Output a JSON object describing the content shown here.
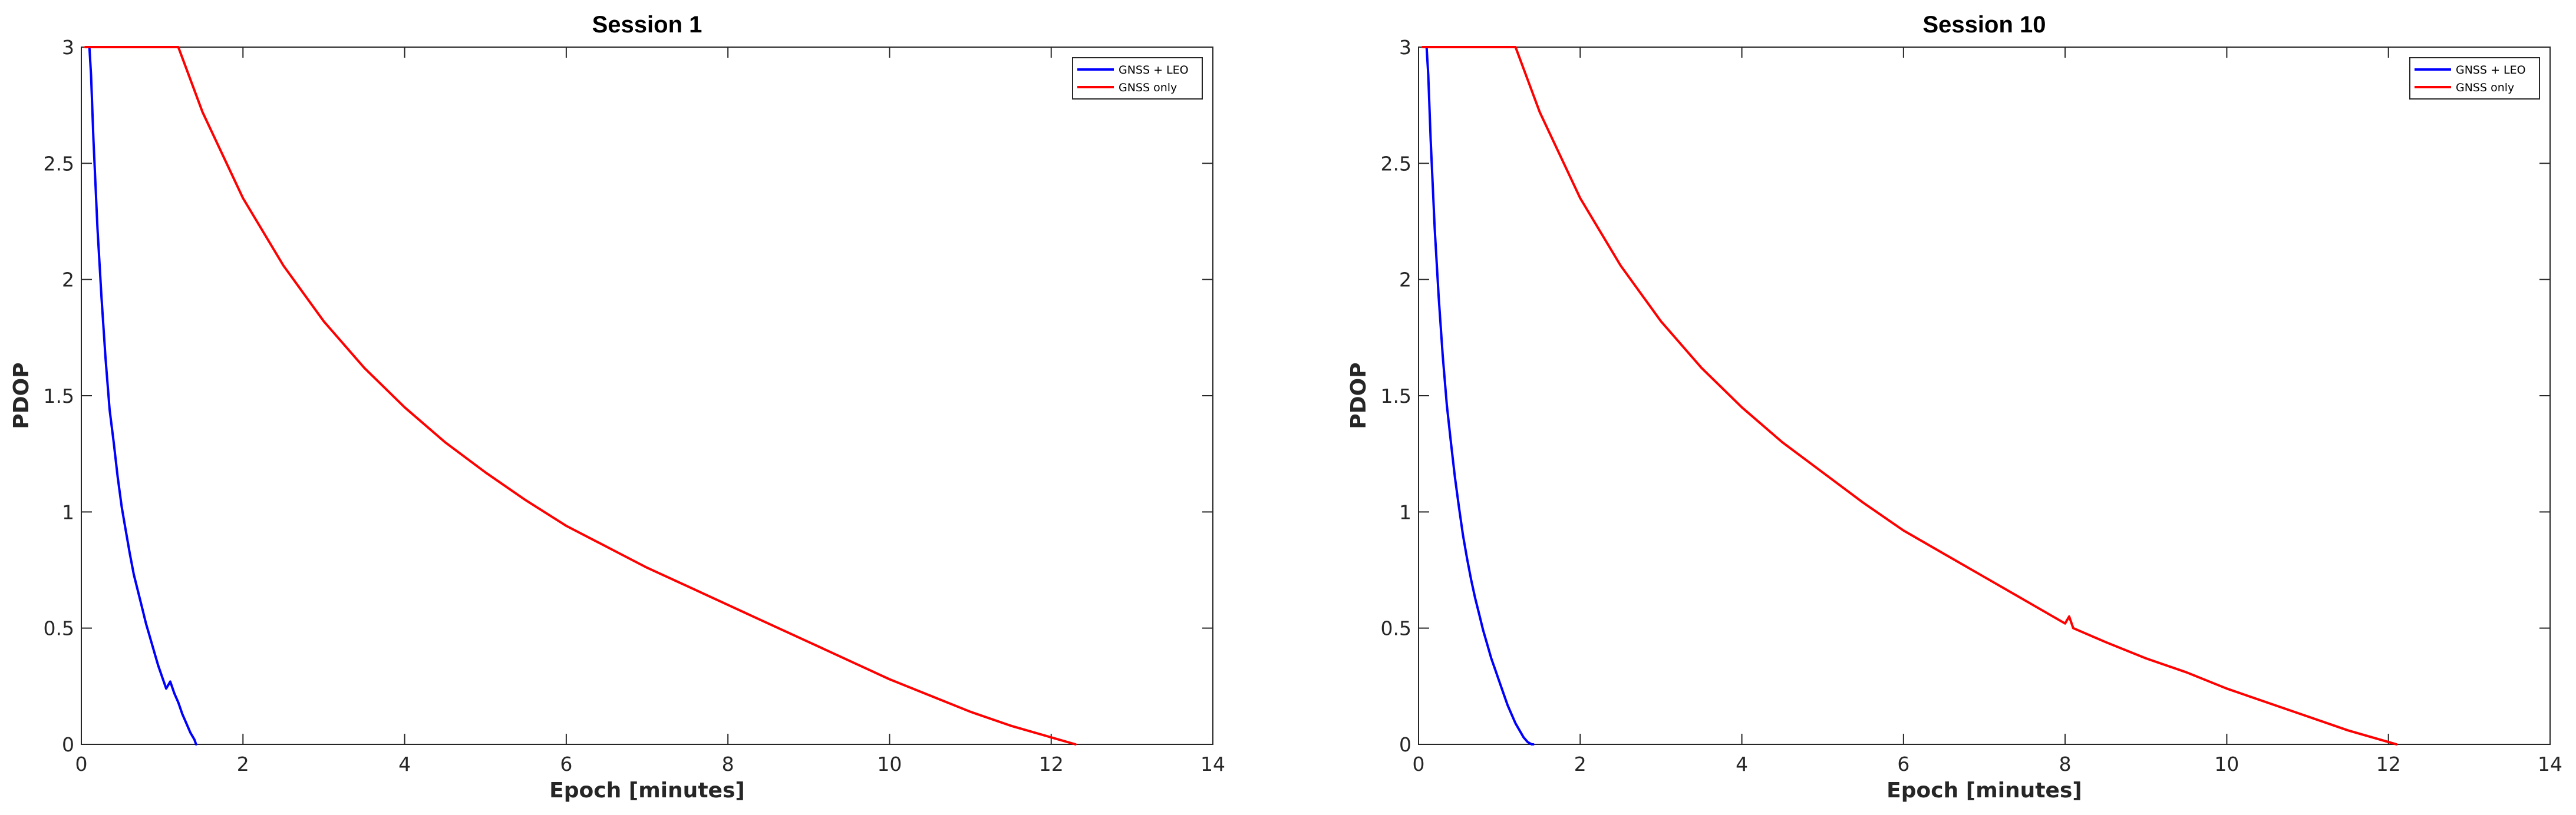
{
  "chart_data": [
    {
      "type": "line",
      "title": "Session 1",
      "xlabel": "Epoch [minutes]",
      "ylabel": "PDOP",
      "xlim": [
        0,
        14
      ],
      "ylim": [
        0,
        3
      ],
      "xticks": [
        0,
        2,
        4,
        6,
        8,
        10,
        12,
        14
      ],
      "xtick_labels": [
        "0",
        "2",
        "4",
        "6",
        "8",
        "10",
        "12",
        "14"
      ],
      "yticks": [
        0,
        0.5,
        1,
        1.5,
        2,
        2.5,
        3
      ],
      "ytick_labels": [
        "0",
        "0.5",
        "1",
        "1.5",
        "2",
        "2.5",
        "3"
      ],
      "grid": false,
      "legend_position": "top-right",
      "series": [
        {
          "name": "GNSS + LEO",
          "color": "#0000ff",
          "x": [
            0.1,
            0.12,
            0.15,
            0.2,
            0.25,
            0.3,
            0.35,
            0.4,
            0.45,
            0.5,
            0.55,
            0.6,
            0.65,
            0.7,
            0.75,
            0.8,
            0.85,
            0.9,
            0.95,
            1.0,
            1.05,
            1.1,
            1.15,
            1.2,
            1.25,
            1.3,
            1.35,
            1.4,
            1.42
          ],
          "y": [
            3.0,
            2.88,
            2.6,
            2.22,
            1.92,
            1.66,
            1.44,
            1.3,
            1.15,
            1.02,
            0.92,
            0.82,
            0.73,
            0.66,
            0.59,
            0.52,
            0.46,
            0.4,
            0.34,
            0.29,
            0.24,
            0.27,
            0.22,
            0.18,
            0.13,
            0.09,
            0.05,
            0.02,
            0.0
          ]
        },
        {
          "name": "GNSS only",
          "color": "#ff0000",
          "x": [
            0.05,
            0.5,
            1.0,
            1.2,
            1.5,
            2.0,
            2.5,
            3.0,
            3.5,
            4.0,
            4.5,
            5.0,
            5.5,
            6.0,
            6.5,
            7.0,
            7.5,
            8.0,
            8.5,
            9.0,
            9.5,
            10.0,
            10.5,
            11.0,
            11.5,
            12.0,
            12.3
          ],
          "y": [
            3.0,
            3.0,
            3.0,
            3.0,
            2.72,
            2.35,
            2.06,
            1.82,
            1.62,
            1.45,
            1.3,
            1.17,
            1.05,
            0.94,
            0.85,
            0.76,
            0.68,
            0.6,
            0.52,
            0.44,
            0.36,
            0.28,
            0.21,
            0.14,
            0.08,
            0.03,
            0.0
          ]
        }
      ]
    },
    {
      "type": "line",
      "title": "Session 10",
      "xlabel": "Epoch [minutes]",
      "ylabel": "PDOP",
      "xlim": [
        0,
        14
      ],
      "ylim": [
        0,
        3
      ],
      "xticks": [
        0,
        2,
        4,
        6,
        8,
        10,
        12,
        14
      ],
      "xtick_labels": [
        "0",
        "2",
        "4",
        "6",
        "8",
        "10",
        "12",
        "14"
      ],
      "yticks": [
        0,
        0.5,
        1,
        1.5,
        2,
        2.5,
        3
      ],
      "ytick_labels": [
        "0",
        "0.5",
        "1",
        "1.5",
        "2",
        "2.5",
        "3"
      ],
      "grid": false,
      "legend_position": "top-right",
      "series": [
        {
          "name": "GNSS + LEO",
          "color": "#0000ff",
          "x": [
            0.1,
            0.12,
            0.15,
            0.2,
            0.25,
            0.3,
            0.35,
            0.4,
            0.45,
            0.5,
            0.55,
            0.6,
            0.65,
            0.7,
            0.75,
            0.8,
            0.85,
            0.9,
            0.95,
            1.0,
            1.05,
            1.1,
            1.15,
            1.2,
            1.25,
            1.3,
            1.35,
            1.4,
            1.42
          ],
          "y": [
            3.0,
            2.88,
            2.6,
            2.22,
            1.92,
            1.67,
            1.46,
            1.3,
            1.15,
            1.02,
            0.9,
            0.8,
            0.71,
            0.63,
            0.56,
            0.49,
            0.43,
            0.37,
            0.32,
            0.27,
            0.22,
            0.17,
            0.13,
            0.09,
            0.06,
            0.03,
            0.01,
            0.0,
            0.0
          ]
        },
        {
          "name": "GNSS only",
          "color": "#ff0000",
          "x": [
            0.05,
            0.5,
            1.0,
            1.2,
            1.5,
            2.0,
            2.5,
            3.0,
            3.5,
            4.0,
            4.5,
            5.0,
            5.5,
            6.0,
            6.5,
            7.0,
            7.5,
            8.0,
            8.05,
            8.1,
            8.5,
            9.0,
            9.5,
            10.0,
            10.5,
            11.0,
            11.5,
            12.0,
            12.1
          ],
          "y": [
            3.0,
            3.0,
            3.0,
            3.0,
            2.72,
            2.35,
            2.06,
            1.82,
            1.62,
            1.45,
            1.3,
            1.17,
            1.04,
            0.92,
            0.82,
            0.72,
            0.62,
            0.52,
            0.55,
            0.5,
            0.44,
            0.37,
            0.31,
            0.24,
            0.18,
            0.12,
            0.06,
            0.01,
            0.0
          ]
        }
      ]
    }
  ]
}
